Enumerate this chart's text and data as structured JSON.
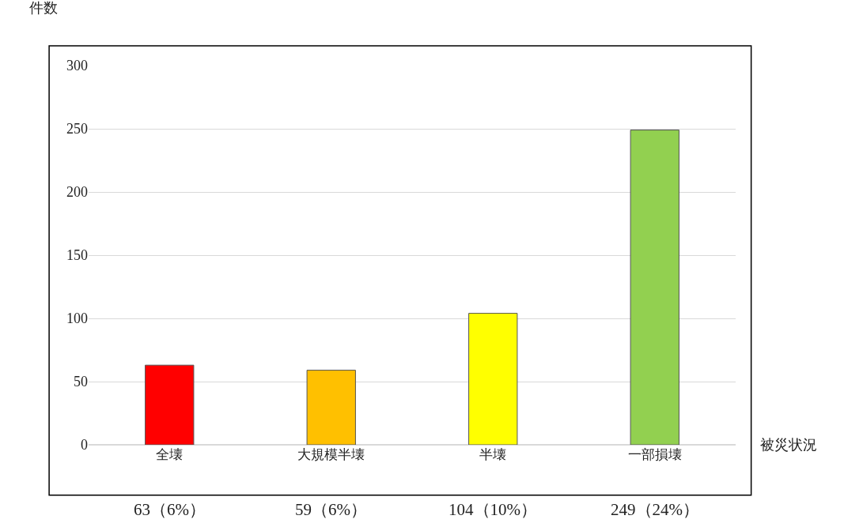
{
  "chart_data": {
    "type": "bar",
    "ylabel": "件数",
    "xlabel": "被災状況",
    "categories": [
      "全壊",
      "大規模半壊",
      "半壊",
      "一部損壊"
    ],
    "values": [
      63,
      59,
      104,
      249
    ],
    "colors": [
      "#ff0000",
      "#ffc000",
      "#ffff00",
      "#92d050"
    ],
    "value_labels": [
      "63（6%）",
      "59（6%）",
      "104（10%）",
      "249（24%）"
    ],
    "ylim": [
      0,
      300
    ],
    "yticks": [
      0,
      50,
      100,
      150,
      200,
      250,
      300
    ],
    "grid": "y",
    "legend": false
  }
}
